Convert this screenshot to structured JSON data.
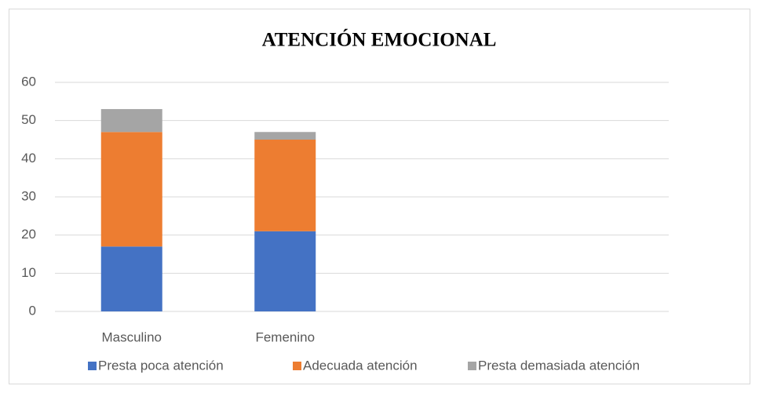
{
  "chart_data": {
    "type": "stacked_bar",
    "title": "ATENCIÓN EMOCIONAL",
    "categories": [
      "Masculino",
      "Femenino",
      null,
      null
    ],
    "series": [
      {
        "name": "Presta poca atención",
        "color": "#4472c4",
        "values": [
          17,
          21,
          null,
          null
        ]
      },
      {
        "name": "Adecuada atención",
        "color": "#ed7d31",
        "values": [
          30,
          24,
          null,
          null
        ]
      },
      {
        "name": "Presta demasiada atención",
        "color": "#a5a5a5",
        "values": [
          6,
          2,
          null,
          null
        ]
      }
    ],
    "ylim": [
      0,
      60
    ],
    "yticks": [
      0,
      10,
      20,
      30,
      40,
      50,
      60
    ],
    "grid": true,
    "legend": "bottom"
  }
}
